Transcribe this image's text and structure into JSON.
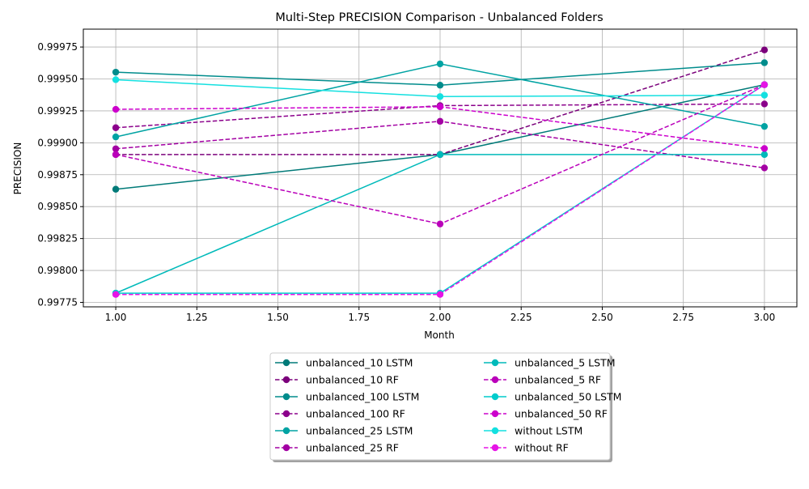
{
  "chart_data": {
    "type": "line",
    "title": "Multi-Step PRECISION Comparison - Unbalanced Folders",
    "xlabel": "Month",
    "ylabel": "PRECISION",
    "xlim": [
      0.9,
      3.1
    ],
    "ylim": [
      0.997715,
      0.99989
    ],
    "x_ticks": [
      "1.00",
      "1.25",
      "1.50",
      "1.75",
      "2.00",
      "2.25",
      "2.50",
      "2.75",
      "3.00"
    ],
    "x_tick_values": [
      1.0,
      1.25,
      1.5,
      1.75,
      2.0,
      2.25,
      2.5,
      2.75,
      3.0
    ],
    "y_ticks": [
      "0.99775",
      "0.99800",
      "0.99825",
      "0.99850",
      "0.99875",
      "0.99900",
      "0.99925",
      "0.99950",
      "0.99975"
    ],
    "y_tick_values": [
      0.99775,
      0.998,
      0.99825,
      0.9985,
      0.99875,
      0.999,
      0.99925,
      0.9995,
      0.99975
    ],
    "grid": true,
    "legend_position": "bottom-center",
    "legend_columns": 2,
    "x": [
      1.0,
      2.0,
      3.0
    ],
    "series": [
      {
        "name": "unbalanced_10 LSTM",
        "style": "solid",
        "color": "#007a78",
        "values": [
          0.998636,
          0.998908,
          0.999455
        ]
      },
      {
        "name": "unbalanced_10 RF",
        "style": "dashed",
        "color": "#7b007b",
        "values": [
          0.998908,
          0.998908,
          0.999727
        ]
      },
      {
        "name": "unbalanced_100 LSTM",
        "style": "solid",
        "color": "#008c8c",
        "values": [
          0.999553,
          0.999451,
          0.999627
        ]
      },
      {
        "name": "unbalanced_100 RF",
        "style": "dashed",
        "color": "#8b008b",
        "values": [
          0.999118,
          0.999291,
          0.999304
        ]
      },
      {
        "name": "unbalanced_25 LSTM",
        "style": "solid",
        "color": "#00a3a3",
        "values": [
          0.999046,
          0.999618,
          0.999128
        ]
      },
      {
        "name": "unbalanced_25 RF",
        "style": "dashed",
        "color": "#a300a3",
        "values": [
          0.998953,
          0.999168,
          0.998803
        ]
      },
      {
        "name": "unbalanced_5 LSTM",
        "style": "solid",
        "color": "#00baba",
        "values": [
          0.997822,
          0.998908,
          0.998908
        ]
      },
      {
        "name": "unbalanced_5 RF",
        "style": "dashed",
        "color": "#ba00ba",
        "values": [
          0.998908,
          0.998364,
          0.999455
        ]
      },
      {
        "name": "unbalanced_50 LSTM",
        "style": "solid",
        "color": "#00cccc",
        "values": [
          0.997822,
          0.997822,
          0.999455
        ]
      },
      {
        "name": "unbalanced_50 RF",
        "style": "dashed",
        "color": "#cc00cc",
        "values": [
          0.999262,
          0.999282,
          0.998955
        ]
      },
      {
        "name": "without LSTM",
        "style": "solid",
        "color": "#14e0e0",
        "values": [
          0.999494,
          0.999362,
          0.999373
        ]
      },
      {
        "name": "without RF",
        "style": "dashed",
        "color": "#e614e6",
        "values": [
          0.997812,
          0.997812,
          0.999455
        ]
      }
    ]
  }
}
